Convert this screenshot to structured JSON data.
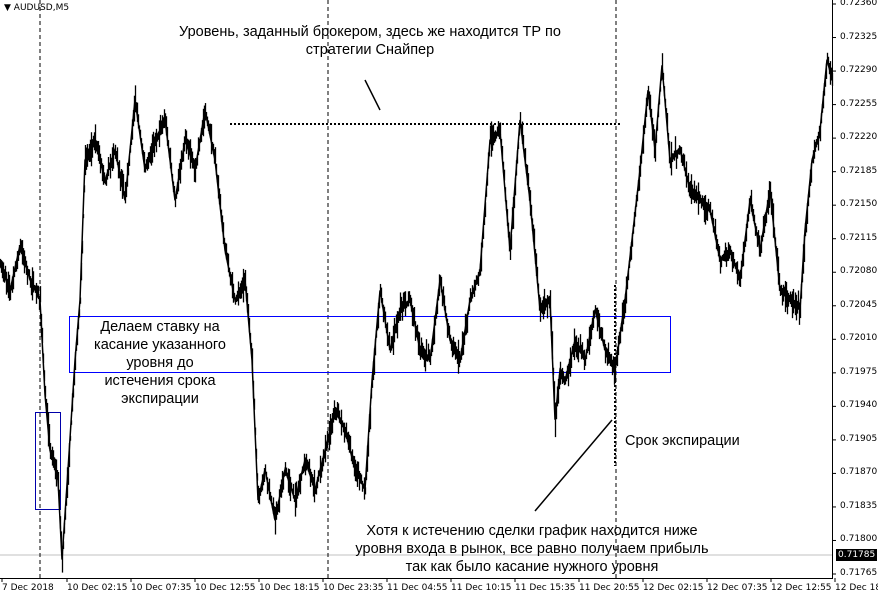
{
  "symbol": "AUDUSD,M5",
  "colors": {
    "price": "#000000",
    "rect": "#0000ff",
    "grid": "#c0c0c0"
  },
  "price_axis": [
    "0.72360",
    "0.72325",
    "0.72290",
    "0.72255",
    "0.72220",
    "0.72185",
    "0.72150",
    "0.72115",
    "0.72080",
    "0.72045",
    "0.72010",
    "0.71975",
    "0.71940",
    "0.71905",
    "0.71870",
    "0.71835",
    "0.71800",
    "0.71765"
  ],
  "current_price": "0.71785",
  "time_axis": [
    "7 Dec 2018",
    "10 Dec 02:15",
    "10 Dec 07:35",
    "10 Dec 12:55",
    "10 Dec 18:15",
    "10 Dec 23:35",
    "11 Dec 04:55",
    "11 Dec 10:15",
    "11 Dec 15:35",
    "11 Dec 20:55",
    "12 Dec 02:15",
    "12 Dec 07:35",
    "12 Dec 12:55",
    "12 Dec 18:"
  ],
  "annotations": {
    "top": [
      "Уровень, заданный брокером, здесь же находится ТР по",
      "стратегии Снайпер"
    ],
    "left": [
      "Делаем ставку на",
      "касание указанного",
      "уровня до",
      "истечения срока",
      "экспирации"
    ],
    "expiry": "Срок экспирации",
    "bottom": [
      "Хотя к истечению сделки график находится ниже",
      "уровня входа в рынок, все равно получаем прибыль",
      "так как было касание нужного уровня"
    ]
  },
  "chart_data": {
    "type": "line",
    "ylim": [
      0.71765,
      0.7236
    ],
    "levels": {
      "broker_level": 0.72246,
      "zone": [
        0.71978,
        0.72032
      ],
      "current": 0.71785
    },
    "x_unit": "M5 bar",
    "series": [
      {
        "x": [
          0,
          10,
          20,
          30,
          40,
          45,
          50,
          58,
          62,
          68,
          75,
          80,
          85,
          95,
          105,
          115,
          125,
          135,
          145,
          155,
          165,
          175,
          185,
          195,
          205,
          215,
          225,
          235,
          245,
          252,
          258,
          265,
          275,
          285,
          295,
          305,
          315,
          325,
          335,
          345,
          355,
          365,
          372,
          380,
          390,
          400,
          410,
          420,
          430,
          440,
          450,
          460,
          470,
          480,
          490,
          500,
          510,
          520,
          530,
          540,
          550,
          555,
          560,
          565,
          575,
          585,
          595,
          605,
          615,
          625,
          632,
          640,
          648,
          655,
          662,
          670,
          680,
          690,
          700,
          710,
          720,
          730,
          740,
          750,
          760,
          770,
          780,
          790,
          800,
          805,
          812,
          820,
          827,
          832
        ],
        "values": [
          0.72088,
          0.72061,
          0.72108,
          0.72072,
          0.72051,
          0.71952,
          0.71894,
          0.71863,
          0.7178,
          0.71874,
          0.71988,
          0.72051,
          0.72197,
          0.72218,
          0.72176,
          0.72208,
          0.72155,
          0.7226,
          0.72187,
          0.72218,
          0.72239,
          0.72155,
          0.72218,
          0.72187,
          0.72249,
          0.72197,
          0.72103,
          0.72051,
          0.72072,
          0.71988,
          0.71842,
          0.71874,
          0.71821,
          0.71874,
          0.71842,
          0.71884,
          0.71853,
          0.71894,
          0.71936,
          0.71915,
          0.71874,
          0.71853,
          0.71967,
          0.72061,
          0.71999,
          0.72041,
          0.72051,
          0.71999,
          0.71988,
          0.72072,
          0.72009,
          0.71988,
          0.72051,
          0.72082,
          0.72218,
          0.72228,
          0.72103,
          0.72239,
          0.72155,
          0.72041,
          0.72051,
          0.71926,
          0.71978,
          0.71967,
          0.72009,
          0.71988,
          0.72041,
          0.71999,
          0.71978,
          0.72051,
          0.72114,
          0.72187,
          0.7227,
          0.72208,
          0.72296,
          0.72197,
          0.72208,
          0.72166,
          0.72155,
          0.72145,
          0.72093,
          0.72103,
          0.72072,
          0.72155,
          0.72103,
          0.72166,
          0.72061,
          0.72051,
          0.72041,
          0.72124,
          0.72197,
          0.72228,
          0.72302,
          0.72281
        ]
      }
    ]
  }
}
